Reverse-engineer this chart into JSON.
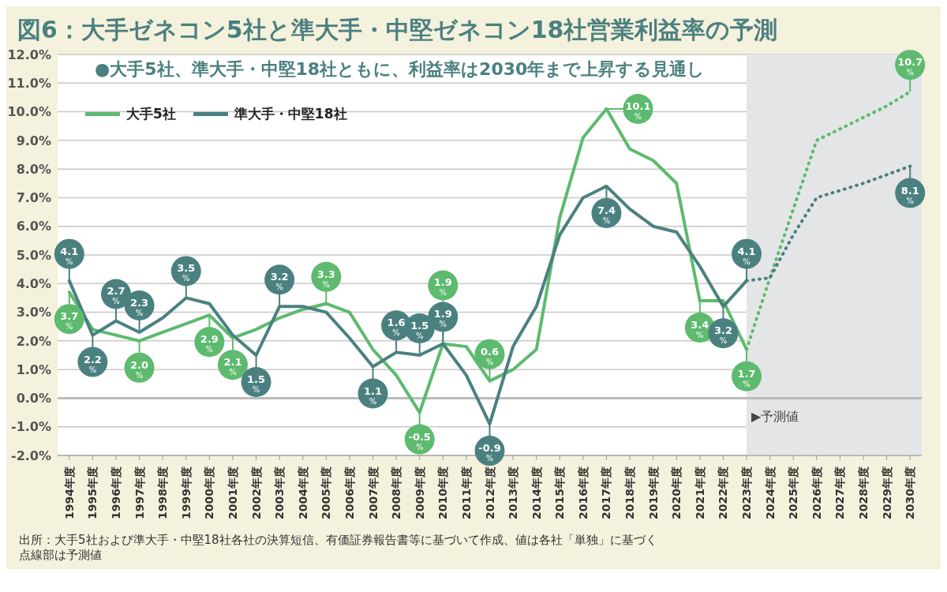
{
  "chart_data": {
    "type": "line",
    "title": "図6：大手ゼネコン5社と準大手・中堅ゼネコン18社営業利益率の予測",
    "subtitle": "●大手5社、準大手・中堅18社ともに、利益率は2030年まで上昇する見通し",
    "categories": [
      "1994年度",
      "1995年度",
      "1996年度",
      "1997年度",
      "1998年度",
      "1999年度",
      "2000年度",
      "2001年度",
      "2002年度",
      "2003年度",
      "2004年度",
      "2005年度",
      "2006年度",
      "2007年度",
      "2008年度",
      "2009年度",
      "2010年度",
      "2011年度",
      "2012年度",
      "2013年度",
      "2014年度",
      "2015年度",
      "2016年度",
      "2017年度",
      "2018年度",
      "2019年度",
      "2020年度",
      "2021年度",
      "2022年度",
      "2023年度",
      "2024年度",
      "2025年度",
      "2026年度",
      "2027年度",
      "2028年度",
      "2029年度",
      "2030年度"
    ],
    "series": [
      {
        "name": "大手5社",
        "color": "#5dba6e",
        "line_style": "solid",
        "values": [
          3.7,
          2.4,
          2.2,
          2.0,
          2.3,
          2.6,
          2.9,
          2.1,
          2.4,
          2.8,
          3.1,
          3.3,
          3.0,
          1.7,
          0.8,
          -0.5,
          1.9,
          1.8,
          0.6,
          1.0,
          1.7,
          6.3,
          9.1,
          10.1,
          8.7,
          8.3,
          7.5,
          3.4,
          3.4,
          1.7,
          null,
          null,
          null,
          null,
          null,
          null,
          null
        ],
        "value_labels": [
          "3.7$_{%}$",
          null,
          null,
          "2.0$_{%}$",
          null,
          null,
          "2.9$_{%}$",
          "2.1$_{%}$",
          null,
          null,
          null,
          "3.3$_{%}$",
          null,
          null,
          null,
          "-0.5$_{%}$",
          "1.9$_{%}$",
          null,
          "0.6$_{%}$",
          null,
          null,
          null,
          null,
          "10.1$_{%}$",
          null,
          null,
          null,
          "3.4$_{%}$",
          null,
          "1.7$_{%}$",
          null,
          null,
          null,
          null,
          null,
          null,
          null
        ]
      },
      {
        "name": "準大手・中堅18社",
        "color": "#4b8080",
        "line_style": "solid",
        "values": [
          4.1,
          2.2,
          2.7,
          2.3,
          2.8,
          3.5,
          3.3,
          2.2,
          1.5,
          3.2,
          3.2,
          3.0,
          2.1,
          1.1,
          1.6,
          1.5,
          1.9,
          0.8,
          -0.9,
          1.8,
          3.2,
          5.7,
          7.0,
          7.4,
          6.6,
          6.0,
          5.8,
          4.6,
          3.2,
          4.1,
          null,
          null,
          null,
          null,
          null,
          null,
          null
        ],
        "value_labels": [
          "4.1$_{%}$",
          "2.2$_{%}$",
          "2.7$_{%}$",
          "2.3$_{%}$",
          null,
          "3.5$_{%}$",
          null,
          null,
          "1.5$_{%}$",
          "3.2$_{%}$",
          null,
          null,
          null,
          "1.1$_{%}$",
          "1.6$_{%}$",
          "1.5$_{%}$",
          "1.9$_{%}$",
          null,
          "-0.9$_{%}$",
          null,
          null,
          null,
          null,
          "7.4$_{%}$",
          null,
          null,
          null,
          null,
          "3.2$_{%}$",
          "4.1$_{%}$",
          null,
          null,
          null,
          null,
          null,
          null,
          null
        ]
      },
      {
        "color": "#5dba6e",
        "line_style": "dotted",
        "values": [
          null,
          null,
          null,
          null,
          null,
          null,
          null,
          null,
          null,
          null,
          null,
          null,
          null,
          null,
          null,
          null,
          null,
          null,
          null,
          null,
          null,
          null,
          null,
          null,
          null,
          null,
          null,
          null,
          null,
          1.7,
          4.2,
          6.6,
          9.0,
          9.4,
          9.8,
          10.2,
          10.7
        ],
        "value_labels": [
          null,
          null,
          null,
          null,
          null,
          null,
          null,
          null,
          null,
          null,
          null,
          null,
          null,
          null,
          null,
          null,
          null,
          null,
          null,
          null,
          null,
          null,
          null,
          null,
          null,
          null,
          null,
          null,
          null,
          null,
          null,
          null,
          null,
          null,
          null,
          null,
          "10.7$_{%}$"
        ]
      },
      {
        "color": "#4b8080",
        "line_style": "dotted",
        "values": [
          null,
          null,
          null,
          null,
          null,
          null,
          null,
          null,
          null,
          null,
          null,
          null,
          null,
          null,
          null,
          null,
          null,
          null,
          null,
          null,
          null,
          null,
          null,
          null,
          null,
          null,
          null,
          null,
          null,
          4.1,
          4.2,
          5.7,
          7.0,
          7.25,
          7.5,
          7.8,
          8.1
        ],
        "value_labels": [
          null,
          null,
          null,
          null,
          null,
          null,
          null,
          null,
          null,
          null,
          null,
          null,
          null,
          null,
          null,
          null,
          null,
          null,
          null,
          null,
          null,
          null,
          null,
          null,
          null,
          null,
          null,
          null,
          null,
          null,
          null,
          null,
          null,
          null,
          null,
          null,
          "8.1$_{%}$"
        ]
      }
    ],
    "ylim": [
      -2,
      12
    ],
    "yticks": [
      {
        "value": -2,
        "label": "-2.0%"
      },
      {
        "value": -1,
        "label": "-1.0%"
      },
      {
        "value": 0,
        "label": "0.0%"
      },
      {
        "value": 1,
        "label": "1.0%"
      },
      {
        "value": 2,
        "label": "2.0%"
      },
      {
        "value": 3,
        "label": "3.0%"
      },
      {
        "value": 4,
        "label": "4.0%"
      },
      {
        "value": 5,
        "label": "5.0%"
      },
      {
        "value": 6,
        "label": "6.0%"
      },
      {
        "value": 7,
        "label": "7.0%"
      },
      {
        "value": 8,
        "label": "8.0%"
      },
      {
        "value": 9,
        "label": "9.0%"
      },
      {
        "value": 10,
        "label": "10.0%"
      },
      {
        "value": 11,
        "label": "11.0%"
      },
      {
        "value": 12,
        "label": "12.0%"
      }
    ],
    "grid": "y",
    "legend": "top left",
    "marker": "none",
    "bands": [
      {
        "axis": "x",
        "from": "2023年度",
        "to": "2030年度",
        "label": "▶予測値",
        "color": "#e4e5e6"
      }
    ],
    "annotations": [
      "出所：大手5社および準大手・中堅18社各社の決算短信、有価証券報告書等に基づいて作成、値は各社「単独」に基づく",
      "点線部は予測値"
    ]
  }
}
